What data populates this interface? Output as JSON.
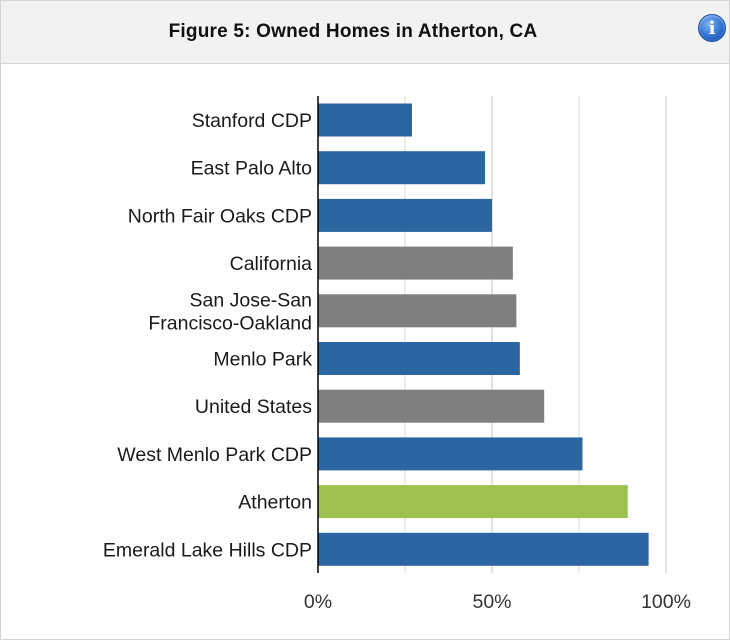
{
  "header": {
    "title": "Figure 5: Owned Homes in Atherton, CA",
    "info_icon": "info-icon"
  },
  "colors": {
    "blue": "#2b66a2",
    "gray": "#7f7f7f",
    "green": "#9cc150",
    "grid": "#d9d9d9",
    "axis": "#000000"
  },
  "chart_data": {
    "type": "bar",
    "orientation": "horizontal",
    "title": "Figure 5: Owned Homes in Atherton, CA",
    "categories": [
      "Stanford CDP",
      "East Palo Alto",
      "North Fair Oaks CDP",
      "California",
      "San Jose-San Francisco-Oakland",
      "Menlo Park",
      "United States",
      "West Menlo Park CDP",
      "Atherton",
      "Emerald Lake Hills CDP"
    ],
    "values": [
      27,
      48,
      50,
      56,
      57,
      58,
      65,
      76,
      89,
      95
    ],
    "kinds": [
      "blue",
      "blue",
      "blue",
      "gray",
      "gray",
      "blue",
      "gray",
      "blue",
      "green",
      "blue"
    ],
    "unit": "%",
    "xlim": [
      0,
      100
    ],
    "xticks": [
      0,
      50,
      100
    ],
    "xtick_labels": [
      "0%",
      "50%",
      "100%"
    ],
    "grid": true
  }
}
